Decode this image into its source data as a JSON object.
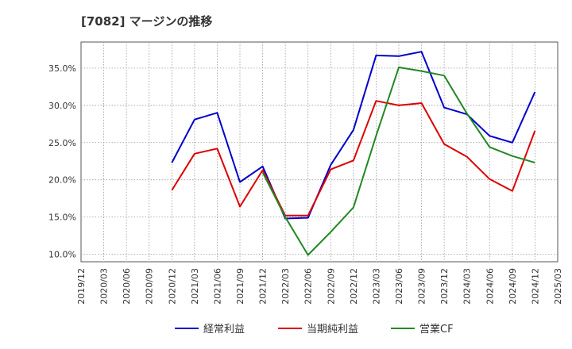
{
  "chart_data": {
    "type": "line",
    "title": "[7082]  マージンの推移",
    "xlabel": "",
    "ylabel": "",
    "x": [
      "2019/12",
      "2020/03",
      "2020/06",
      "2020/09",
      "2020/12",
      "2021/03",
      "2021/06",
      "2021/09",
      "2021/12",
      "2022/03",
      "2022/06",
      "2022/09",
      "2022/12",
      "2023/03",
      "2023/06",
      "2023/09",
      "2023/12",
      "2024/03",
      "2024/06",
      "2024/09",
      "2024/12",
      "2025/03"
    ],
    "ylim": [
      9.0,
      38.5
    ],
    "yticks": [
      10.0,
      15.0,
      20.0,
      25.0,
      30.0,
      35.0
    ],
    "ytick_labels": [
      "10.0%",
      "15.0%",
      "20.0%",
      "25.0%",
      "30.0%",
      "35.0%"
    ],
    "grid": true,
    "legend_position": "bottom",
    "series": [
      {
        "name": "経常利益",
        "color": "#0000cc",
        "values": [
          null,
          null,
          null,
          null,
          22.3,
          28.1,
          29.0,
          19.7,
          21.8,
          14.8,
          14.9,
          22.0,
          26.7,
          36.7,
          36.6,
          37.2,
          29.7,
          28.8,
          25.9,
          25.0,
          31.8,
          null
        ]
      },
      {
        "name": "当期純利益",
        "color": "#dd0000",
        "values": [
          null,
          null,
          null,
          null,
          18.6,
          23.5,
          24.2,
          16.4,
          21.3,
          15.2,
          15.2,
          21.4,
          22.6,
          30.6,
          30.0,
          30.3,
          24.8,
          23.1,
          20.1,
          18.5,
          26.6,
          null
        ]
      },
      {
        "name": "営業CF",
        "color": "#228822",
        "values": [
          null,
          null,
          null,
          null,
          null,
          null,
          null,
          null,
          21.0,
          15.0,
          9.9,
          13.0,
          16.3,
          25.9,
          35.1,
          34.6,
          34.0,
          28.9,
          24.4,
          23.2,
          22.3,
          null
        ]
      }
    ]
  }
}
